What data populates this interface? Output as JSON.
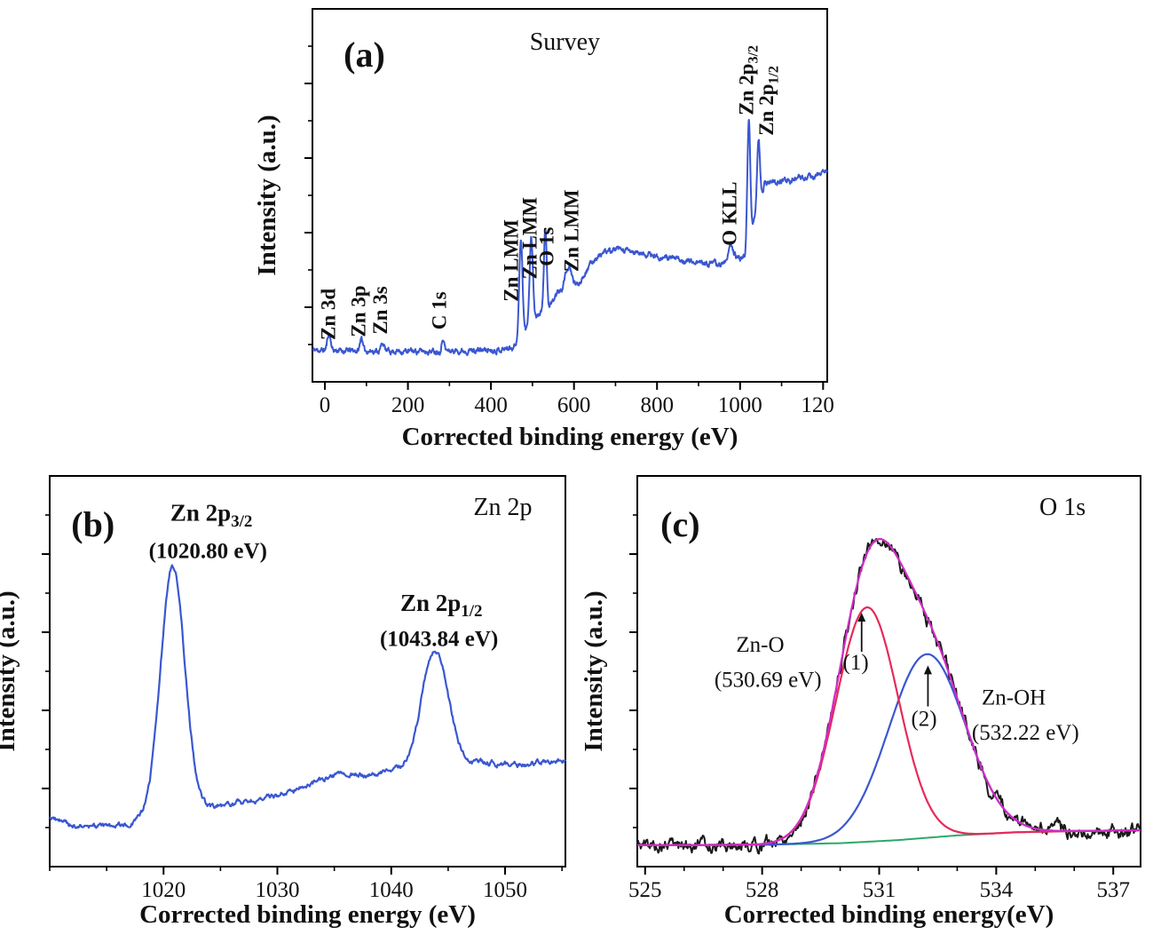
{
  "figure": {
    "description": "XPS spectra figure with three panels",
    "accent_blue": "#2d49c3",
    "curve_blue": "#3a57d1",
    "panel_letter_color": "#2743c8"
  },
  "chart_data": [
    {
      "id": "panel-a",
      "type": "line",
      "panel_label": "(a)",
      "title": "Survey",
      "xlabel": "Corrected binding energy (eV)",
      "ylabel": "Intensity (a.u.)",
      "xlim": [
        -30,
        1210
      ],
      "ylim": [
        0,
        1
      ],
      "xticks": [
        0,
        200,
        400,
        600,
        800,
        1000,
        1200
      ],
      "xminor_step": 100,
      "yticks": [
        0.2,
        0.4,
        0.6,
        0.8
      ],
      "yticks_minor": [
        0.1,
        0.3,
        0.5,
        0.7,
        0.9
      ],
      "frame_color": "#000000",
      "layout": {
        "margins": {
          "l": 84,
          "r": 8,
          "t": 10,
          "b": 85
        },
        "ylabel_x": 42
      },
      "series": [
        {
          "name": "survey-spectrum",
          "color": "#3a57d1",
          "width": 2,
          "samples": 1500,
          "seed": 11,
          "noise": 0.01,
          "base_smooth": 4,
          "base": [
            [
              -30,
              0.085
            ],
            [
              100,
              0.083
            ],
            [
              200,
              0.082
            ],
            [
              300,
              0.083
            ],
            [
              420,
              0.086
            ],
            [
              450,
              0.092
            ],
            [
              465,
              0.105
            ],
            [
              480,
              0.13
            ],
            [
              495,
              0.155
            ],
            [
              510,
              0.175
            ],
            [
              525,
              0.19
            ],
            [
              540,
              0.2
            ],
            [
              555,
              0.215
            ],
            [
              570,
              0.225
            ],
            [
              590,
              0.245
            ],
            [
              610,
              0.26
            ],
            [
              630,
              0.3
            ],
            [
              650,
              0.33
            ],
            [
              670,
              0.345
            ],
            [
              700,
              0.355
            ],
            [
              730,
              0.35
            ],
            [
              780,
              0.34
            ],
            [
              840,
              0.33
            ],
            [
              900,
              0.32
            ],
            [
              950,
              0.315
            ],
            [
              975,
              0.32
            ],
            [
              1000,
              0.33
            ],
            [
              1012,
              0.34
            ],
            [
              1025,
              0.4
            ],
            [
              1040,
              0.46
            ],
            [
              1052,
              0.5
            ],
            [
              1060,
              0.535
            ],
            [
              1080,
              0.535
            ],
            [
              1120,
              0.54
            ],
            [
              1160,
              0.548
            ],
            [
              1185,
              0.55
            ],
            [
              1197,
              0.562
            ],
            [
              1210,
              0.568
            ]
          ],
          "peaks": [
            {
              "c": 10,
              "h": 0.045,
              "s": 4
            },
            {
              "c": 88,
              "h": 0.038,
              "s": 3
            },
            {
              "c": 139,
              "h": 0.022,
              "s": 3.5
            },
            {
              "c": 284.6,
              "h": 0.036,
              "s": 3
            },
            {
              "c": 472,
              "h": 0.26,
              "s": 4
            },
            {
              "c": 497,
              "h": 0.23,
              "s": 4
            },
            {
              "c": 531,
              "h": 0.225,
              "s": 3.2
            },
            {
              "c": 560,
              "h": 0.02,
              "s": 6
            },
            {
              "c": 585,
              "h": 0.065,
              "s": 9
            },
            {
              "c": 978,
              "h": 0.04,
              "s": 7
            },
            {
              "c": 1021,
              "h": 0.32,
              "s": 3.4
            },
            {
              "c": 1044.5,
              "h": 0.175,
              "s": 3.4
            }
          ]
        }
      ],
      "annotations": [
        {
          "name": "label-zn3d",
          "text": "Zn 3d",
          "x": 24,
          "y": 0.112,
          "rot": -90,
          "anchor": "start",
          "color": "#2d49c3",
          "bold": true,
          "size": 23
        },
        {
          "name": "label-zn3p",
          "text": "Zn 3p",
          "x": 97,
          "y": 0.12,
          "rot": -90,
          "anchor": "start",
          "color": "#2d49c3",
          "bold": true,
          "size": 23
        },
        {
          "name": "label-zn3s",
          "text": "Zn 3s",
          "x": 150,
          "y": 0.127,
          "rot": -90,
          "anchor": "start",
          "color": "#2d49c3",
          "bold": true,
          "size": 23
        },
        {
          "name": "label-c1s",
          "text": "C 1s",
          "x": 292,
          "y": 0.14,
          "rot": -90,
          "anchor": "start",
          "color": "#111111",
          "bold": true,
          "size": 23
        },
        {
          "name": "label-znlmm-1",
          "text": "Zn LMM",
          "x": 465,
          "y": 0.215,
          "rot": -90,
          "anchor": "start",
          "color": "#111111",
          "bold": true,
          "size": 23
        },
        {
          "name": "label-znlmm-2",
          "text": "Zn LMM",
          "x": 510,
          "y": 0.275,
          "rot": -90,
          "anchor": "start",
          "color": "#111111",
          "bold": true,
          "size": 23
        },
        {
          "name": "label-o1s",
          "text": "O 1s",
          "x": 550,
          "y": 0.31,
          "rot": -90,
          "anchor": "start",
          "color": "#2d49c3",
          "bold": true,
          "size": 23
        },
        {
          "name": "label-znlmm-3",
          "text": "Zn LMM",
          "x": 610,
          "y": 0.295,
          "rot": -90,
          "anchor": "start",
          "color": "#111111",
          "bold": true,
          "size": 23
        },
        {
          "name": "label-okll",
          "text": "O KLL",
          "x": 991,
          "y": 0.365,
          "rot": -90,
          "anchor": "start",
          "color": "#111111",
          "bold": true,
          "size": 23
        },
        {
          "name": "label-zn2p32",
          "text": "Zn 2p_{3/2}",
          "x": 1031,
          "y": 0.715,
          "rot": -90,
          "anchor": "start",
          "color": "#2d49c3",
          "bold": true,
          "size": 23
        },
        {
          "name": "label-zn2p12",
          "text": "Zn 2p_{1/2}",
          "x": 1080,
          "y": 0.66,
          "rot": -90,
          "anchor": "start",
          "color": "#2d49c3",
          "bold": true,
          "size": 23
        },
        {
          "name": "chart-title",
          "text": "Survey",
          "x": 578,
          "y": 0.89,
          "anchor": "middle",
          "color": "#111111",
          "size": 28
        },
        {
          "name": "panel-letter",
          "text": "(a)",
          "x": 95,
          "y": 0.845,
          "anchor": "middle",
          "color": "#2743c8",
          "bold": true,
          "size": 40
        }
      ]
    },
    {
      "id": "panel-b",
      "type": "line",
      "panel_label": "(b)",
      "title": "Zn 2p",
      "xlabel": "Corrected binding energy (eV)",
      "ylabel": "Intensity (a.u.)",
      "xlim": [
        1010,
        1055.3
      ],
      "ylim": [
        0,
        1
      ],
      "xticks": [
        1020,
        1030,
        1040,
        1050
      ],
      "xminor_step": 5,
      "yticks": [
        0.2,
        0.4,
        0.6,
        0.8
      ],
      "yticks_minor": [
        0.1,
        0.3,
        0.5,
        0.7,
        0.9
      ],
      "frame_color": "#000000",
      "layout": {
        "margins": {
          "l": 56,
          "r": 13,
          "t": 12,
          "b": 77
        },
        "ylabel_x": 16
      },
      "series": [
        {
          "name": "zn2p-spectrum",
          "color": "#3a57d1",
          "width": 2.2,
          "samples": 700,
          "seed": 9,
          "noise": 0.01,
          "base_smooth": 3,
          "base": [
            [
              1010,
              0.125
            ],
            [
              1012,
              0.105
            ],
            [
              1014,
              0.1
            ],
            [
              1016,
              0.105
            ],
            [
              1018,
              0.115
            ],
            [
              1023,
              0.145
            ],
            [
              1026,
              0.16
            ],
            [
              1029,
              0.175
            ],
            [
              1032,
              0.2
            ],
            [
              1034,
              0.225
            ],
            [
              1036,
              0.235
            ],
            [
              1038,
              0.235
            ],
            [
              1040,
              0.245
            ],
            [
              1042,
              0.25
            ],
            [
              1046,
              0.262
            ],
            [
              1048,
              0.265
            ],
            [
              1051,
              0.262
            ],
            [
              1053,
              0.265
            ],
            [
              1055.3,
              0.275
            ]
          ],
          "peaks": [
            {
              "c": 1020.8,
              "h": 0.64,
              "s": 1.05
            },
            {
              "c": 1043.84,
              "h": 0.3,
              "s": 1.15
            }
          ]
        }
      ],
      "annotations": [
        {
          "name": "panel-letter",
          "text": "(b)",
          "x": 1013.8,
          "y": 0.845,
          "anchor": "middle",
          "color": "#2743c8",
          "bold": true,
          "size": 40
        },
        {
          "name": "label-zn2p32",
          "text": "Zn 2p_{3/2}",
          "x": 1024.2,
          "y": 0.885,
          "anchor": "middle",
          "color": "#2d49c3",
          "bold": true,
          "size": 27
        },
        {
          "name": "label-zn2p32-ev",
          "text": "(1020.80 eV)",
          "x": 1023.9,
          "y": 0.79,
          "anchor": "middle",
          "color": "#2d49c3",
          "bold": true,
          "size": 25
        },
        {
          "name": "label-zn2p12",
          "text": "Zn 2p_{1/2}",
          "x": 1044.4,
          "y": 0.655,
          "anchor": "middle",
          "color": "#2d49c3",
          "bold": true,
          "size": 27
        },
        {
          "name": "label-zn2p12-ev",
          "text": "(1043.84 eV)",
          "x": 1044.2,
          "y": 0.565,
          "anchor": "middle",
          "color": "#2d49c3",
          "bold": true,
          "size": 25
        },
        {
          "name": "chart-title",
          "text": "Zn 2p",
          "x": 1049.8,
          "y": 0.9,
          "anchor": "middle",
          "color": "#111111",
          "size": 28
        }
      ]
    },
    {
      "id": "panel-c",
      "type": "line",
      "panel_label": "(c)",
      "title": "O 1s",
      "xlabel": "Corrected binding energy(eV)",
      "ylabel": "Intensity (a.u.)",
      "xlim": [
        524.8,
        537.7
      ],
      "ylim": [
        0,
        1
      ],
      "xticks": [
        525,
        528,
        531,
        534,
        537
      ],
      "xminor_step": 1,
      "yticks": [
        0.2,
        0.4,
        0.6,
        0.8
      ],
      "yticks_minor": [
        0.1,
        0.3,
        0.5,
        0.7,
        0.9
      ],
      "frame_color": "#000000",
      "layout": {
        "margins": {
          "l": 66,
          "r": 14,
          "t": 12,
          "b": 77
        },
        "ylabel_x": 26
      },
      "series": [
        {
          "name": "o1s-raw-data",
          "color": "#1a1a1a",
          "width": 2,
          "samples": 600,
          "seed": 5,
          "noise": 0.028,
          "base_smooth": 2,
          "base": [
            [
              524.8,
              0.055
            ],
            [
              528,
              0.056
            ],
            [
              530,
              0.06
            ],
            [
              531.5,
              0.068
            ],
            [
              533,
              0.08
            ],
            [
              534.5,
              0.088
            ],
            [
              536,
              0.091
            ],
            [
              537.7,
              0.093
            ]
          ],
          "peaks": [
            {
              "c": 530.69,
              "h": 0.6,
              "s": 0.8
            },
            {
              "c": 532.22,
              "h": 0.47,
              "s": 0.98
            }
          ]
        },
        {
          "name": "o1s-baseline",
          "color": "#2aa968",
          "width": 2,
          "samples": 300,
          "base_smooth": 2,
          "base": [
            [
              524.8,
              0.055
            ],
            [
              528,
              0.056
            ],
            [
              530,
              0.06
            ],
            [
              531.5,
              0.068
            ],
            [
              533,
              0.08
            ],
            [
              534.5,
              0.088
            ],
            [
              536,
              0.091
            ],
            [
              537.7,
              0.093
            ]
          ],
          "peaks": []
        },
        {
          "name": "o1s-component-zn-oh",
          "color": "#3a57d1",
          "width": 2.2,
          "samples": 400,
          "base_smooth": 2,
          "base": [
            [
              524.8,
              0.055
            ],
            [
              528,
              0.056
            ],
            [
              530,
              0.06
            ],
            [
              531.5,
              0.068
            ],
            [
              533,
              0.08
            ],
            [
              534.5,
              0.088
            ],
            [
              536,
              0.091
            ],
            [
              537.7,
              0.093
            ]
          ],
          "peaks": [
            {
              "c": 532.22,
              "h": 0.47,
              "s": 0.98
            }
          ]
        },
        {
          "name": "o1s-component-zn-o",
          "color": "#e62a5a",
          "width": 2.2,
          "samples": 400,
          "base_smooth": 2,
          "base": [
            [
              524.8,
              0.055
            ],
            [
              528,
              0.056
            ],
            [
              530,
              0.06
            ],
            [
              531.5,
              0.068
            ],
            [
              533,
              0.08
            ],
            [
              534.5,
              0.088
            ],
            [
              536,
              0.091
            ],
            [
              537.7,
              0.093
            ]
          ],
          "peaks": [
            {
              "c": 530.69,
              "h": 0.6,
              "s": 0.8
            }
          ]
        },
        {
          "name": "o1s-fit-envelope",
          "color": "#d12cc4",
          "width": 2.2,
          "samples": 400,
          "base_smooth": 2,
          "base": [
            [
              524.8,
              0.055
            ],
            [
              528,
              0.056
            ],
            [
              530,
              0.06
            ],
            [
              531.5,
              0.068
            ],
            [
              533,
              0.08
            ],
            [
              534.5,
              0.088
            ],
            [
              536,
              0.091
            ],
            [
              537.7,
              0.093
            ]
          ],
          "peaks": [
            {
              "c": 530.69,
              "h": 0.6,
              "s": 0.8
            },
            {
              "c": 532.22,
              "h": 0.47,
              "s": 0.98
            }
          ]
        }
      ],
      "annotations": [
        {
          "name": "panel-letter",
          "text": "(c)",
          "x": 525.9,
          "y": 0.845,
          "anchor": "middle",
          "color": "#2743c8",
          "bold": true,
          "size": 40
        },
        {
          "name": "label-zn-o",
          "text": "Zn-O",
          "x": 527.95,
          "y": 0.55,
          "anchor": "middle",
          "color": "#111111",
          "size": 25
        },
        {
          "name": "label-zn-o-ev",
          "text": "(530.69 eV)",
          "x": 528.15,
          "y": 0.46,
          "anchor": "middle",
          "color": "#111111",
          "size": 25
        },
        {
          "name": "label-comp-1",
          "text": "(1)",
          "x": 530.4,
          "y": 0.505,
          "anchor": "middle",
          "color": "#111111",
          "size": 25
        },
        {
          "name": "arrow-comp-1",
          "type": "arrow",
          "x": 530.55,
          "y1": 0.55,
          "y2": 0.65,
          "color": "#111111"
        },
        {
          "name": "label-comp-2",
          "text": "(2)",
          "x": 532.15,
          "y": 0.36,
          "anchor": "middle",
          "color": "#111111",
          "size": 25
        },
        {
          "name": "arrow-comp-2",
          "type": "arrow",
          "x": 532.25,
          "y1": 0.41,
          "y2": 0.515,
          "color": "#111111"
        },
        {
          "name": "label-zn-oh",
          "text": "Zn-OH",
          "x": 534.45,
          "y": 0.415,
          "anchor": "middle",
          "color": "#111111",
          "size": 25
        },
        {
          "name": "label-zn-oh-ev",
          "text": "(532.22 eV)",
          "x": 534.75,
          "y": 0.325,
          "anchor": "middle",
          "color": "#111111",
          "size": 25
        },
        {
          "name": "chart-title",
          "text": "O 1s",
          "x": 535.7,
          "y": 0.9,
          "anchor": "middle",
          "color": "#111111",
          "size": 28
        }
      ]
    }
  ]
}
